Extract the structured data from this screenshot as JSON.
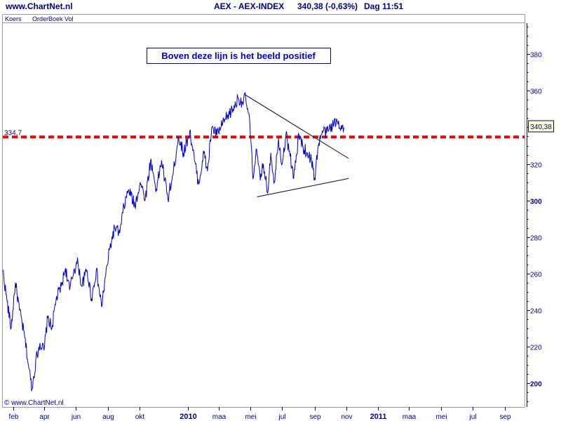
{
  "header": {
    "site": "www.ChartNet.nl",
    "instrument": "AEX - AEX-INDEX",
    "quote": "340,38 (-0,63%)",
    "period_time": "Dag  11:51"
  },
  "tabs": [
    "Koers",
    "OrderBoek Vol"
  ],
  "copyright": "© www.ChartNet.nl",
  "annotation": "Boven deze lijn is het beeld positief",
  "colors": {
    "series": "#0000cc",
    "reference_line": "#ee0000",
    "axis": "#000080",
    "trendline": "#000033"
  },
  "chart_data": {
    "type": "line",
    "title": "AEX - AEX-INDEX",
    "xlabel": "",
    "ylabel": "",
    "ylim": [
      187,
      397
    ],
    "yticks": [
      200,
      220,
      240,
      260,
      280,
      300,
      320,
      340,
      360,
      380
    ],
    "ytick_labels": [
      "200",
      "220",
      "240",
      "260",
      "280",
      "300",
      "320",
      "340",
      "360",
      "380"
    ],
    "ytick_bold": [
      200,
      300
    ],
    "xlim": [
      "2009-01-12",
      "2011-10-08"
    ],
    "xticks": [
      {
        "label": "feb",
        "date": "2009-02-01",
        "bold": false
      },
      {
        "label": "apr",
        "date": "2009-04-01",
        "bold": false
      },
      {
        "label": "jun",
        "date": "2009-06-01",
        "bold": false
      },
      {
        "label": "aug",
        "date": "2009-08-01",
        "bold": false
      },
      {
        "label": "okt",
        "date": "2009-10-01",
        "bold": false
      },
      {
        "label": "2010",
        "date": "2010-01-01",
        "bold": true
      },
      {
        "label": "maa",
        "date": "2010-03-01",
        "bold": false
      },
      {
        "label": "mei",
        "date": "2010-05-01",
        "bold": false
      },
      {
        "label": "jul",
        "date": "2010-07-01",
        "bold": false
      },
      {
        "label": "sep",
        "date": "2010-09-01",
        "bold": false
      },
      {
        "label": "nov",
        "date": "2010-11-01",
        "bold": false
      },
      {
        "label": "2011",
        "date": "2011-01-01",
        "bold": true
      },
      {
        "label": "maa",
        "date": "2011-03-01",
        "bold": false
      },
      {
        "label": "mei",
        "date": "2011-05-01",
        "bold": false
      },
      {
        "label": "jul",
        "date": "2011-07-01",
        "bold": false
      },
      {
        "label": "sep",
        "date": "2011-09-01",
        "bold": false
      }
    ],
    "grid": false,
    "reference_line": {
      "value": 334.7,
      "label": "334,7",
      "style": "dashed"
    },
    "last_value": {
      "value": 340.38,
      "label": "340,38"
    },
    "trendlines": [
      {
        "from": [
          "2010-04-20",
          358
        ],
        "to": [
          "2010-11-05",
          323
        ]
      },
      {
        "from": [
          "2010-05-14",
          302
        ],
        "to": [
          "2010-11-05",
          312
        ]
      }
    ],
    "series": [
      {
        "x": [
          "2009-01-12",
          "2009-01-20",
          "2009-01-28",
          "2009-02-05",
          "2009-02-13",
          "2009-02-23",
          "2009-03-03",
          "2009-03-09",
          "2009-03-16",
          "2009-03-24",
          "2009-04-01",
          "2009-04-08",
          "2009-04-16",
          "2009-04-24",
          "2009-05-04",
          "2009-05-12",
          "2009-05-20",
          "2009-05-28",
          "2009-06-05",
          "2009-06-12",
          "2009-06-22",
          "2009-07-01",
          "2009-07-10",
          "2009-07-20",
          "2009-07-28",
          "2009-08-05",
          "2009-08-14",
          "2009-08-24",
          "2009-09-01",
          "2009-09-10",
          "2009-09-22",
          "2009-10-02",
          "2009-10-12",
          "2009-10-22",
          "2009-11-02",
          "2009-11-12",
          "2009-11-24",
          "2009-12-04",
          "2009-12-14",
          "2009-12-24",
          "2010-01-05",
          "2010-01-14",
          "2010-01-22",
          "2010-02-01",
          "2010-02-08",
          "2010-02-16",
          "2010-02-26",
          "2010-03-08",
          "2010-03-18",
          "2010-03-29",
          "2010-04-08",
          "2010-04-15",
          "2010-04-22",
          "2010-04-30",
          "2010-05-06",
          "2010-05-12",
          "2010-05-20",
          "2010-05-26",
          "2010-06-03",
          "2010-06-09",
          "2010-06-16",
          "2010-06-24",
          "2010-07-01",
          "2010-07-08",
          "2010-07-15",
          "2010-07-23",
          "2010-08-02",
          "2010-08-10",
          "2010-08-18",
          "2010-08-26",
          "2010-09-01",
          "2010-09-08",
          "2010-09-16",
          "2010-09-24",
          "2010-10-01",
          "2010-10-08",
          "2010-10-15",
          "2010-10-22",
          "2010-10-27"
        ],
        "values": [
          262,
          245,
          230,
          255,
          240,
          225,
          208,
          197,
          212,
          222,
          218,
          236,
          230,
          246,
          253,
          263,
          251,
          262,
          266,
          253,
          262,
          246,
          262,
          242,
          259,
          274,
          285,
          282,
          297,
          306,
          297,
          310,
          301,
          322,
          306,
          322,
          301,
          314,
          335,
          326,
          338,
          322,
          309,
          326,
          316,
          340,
          336,
          341,
          346,
          350,
          356,
          354,
          356,
          342,
          312,
          328,
          311,
          320,
          304,
          326,
          310,
          334,
          320,
          336,
          327,
          312,
          336,
          329,
          326,
          322,
          312,
          330,
          338,
          337,
          340,
          342,
          343,
          341,
          340
        ]
      }
    ]
  }
}
